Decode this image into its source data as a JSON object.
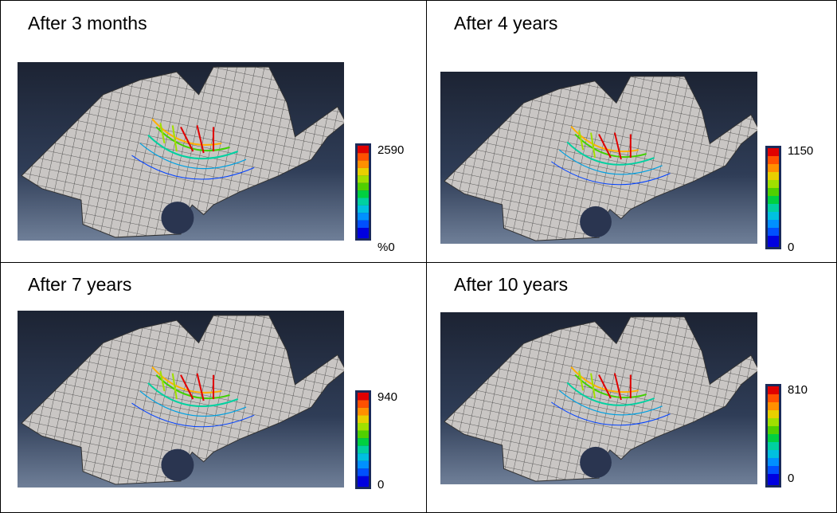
{
  "panels": [
    {
      "title": "After 3 months",
      "max_label": "2590",
      "min_label": "%0"
    },
    {
      "title": "After 4 years",
      "max_label": "1150",
      "min_label": "0"
    },
    {
      "title": "After 7 years",
      "max_label": "940",
      "min_label": "0"
    },
    {
      "title": "After 10 years",
      "max_label": "810",
      "min_label": "0"
    }
  ]
}
